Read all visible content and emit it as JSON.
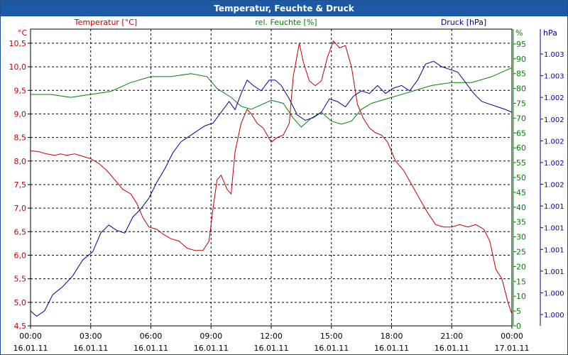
{
  "window": {
    "title": "Temperatur, Feuchte & Druck"
  },
  "colors": {
    "temperature": "#c00000",
    "humidity": "#008000",
    "pressure": "#000099",
    "grid": "#000000",
    "title_bar": "#1d5aa6"
  },
  "chart_data": {
    "type": "line",
    "title": "Temperatur, Feuchte & Druck",
    "x_hours": [
      0,
      24
    ],
    "x_ticks": [
      {
        "time": "00:00",
        "date": "16.01.11"
      },
      {
        "time": "03:00",
        "date": "16.01.11"
      },
      {
        "time": "06:00",
        "date": "16.01.11"
      },
      {
        "time": "09:00",
        "date": "16.01.11"
      },
      {
        "time": "12:00",
        "date": "16.01.11"
      },
      {
        "time": "15:00",
        "date": "16.01.11"
      },
      {
        "time": "18:00",
        "date": "16.01.11"
      },
      {
        "time": "21:00",
        "date": "16.01.11"
      },
      {
        "time": "00:00",
        "date": "17.01.11"
      }
    ],
    "axes": {
      "temperature": {
        "unit": "°C",
        "label": "Temperatur [°C]",
        "ylim": [
          4.5,
          10.8
        ],
        "ticks": [
          "4,5",
          "5,0",
          "5,5",
          "6,0",
          "6,5",
          "7,0",
          "7,5",
          "8,0",
          "8,5",
          "9,0",
          "9,5",
          "10,0",
          "10,5"
        ]
      },
      "humidity": {
        "unit": "%",
        "label": "rel. Feuchte [%]",
        "ylim": [
          0,
          100
        ],
        "ticks": [
          "0",
          "5",
          "10",
          "15",
          "20",
          "25",
          "30",
          "35",
          "40",
          "45",
          "50",
          "55",
          "60",
          "65",
          "70",
          "75",
          "80",
          "85",
          "90",
          "95"
        ]
      },
      "pressure": {
        "unit": "hPa",
        "label": "Druck [hPa]",
        "ticks": [
          "1.000",
          "1.000",
          "1.001",
          "1.001",
          "1.001",
          "1.001",
          "1.002",
          "1.002",
          "1.002",
          "1.002",
          "1.002",
          "1.003",
          "1.003"
        ]
      }
    },
    "series": [
      {
        "name": "Temperatur",
        "axis": "temperature",
        "points": [
          [
            0,
            8.22
          ],
          [
            0.4,
            8.2
          ],
          [
            0.8,
            8.15
          ],
          [
            1.2,
            8.12
          ],
          [
            1.5,
            8.15
          ],
          [
            1.8,
            8.12
          ],
          [
            2.2,
            8.15
          ],
          [
            2.6,
            8.1
          ],
          [
            3,
            8.05
          ],
          [
            3.4,
            7.95
          ],
          [
            3.8,
            7.8
          ],
          [
            4.2,
            7.6
          ],
          [
            4.6,
            7.4
          ],
          [
            5,
            7.3
          ],
          [
            5.3,
            7.1
          ],
          [
            5.6,
            6.8
          ],
          [
            5.9,
            6.6
          ],
          [
            6.3,
            6.55
          ],
          [
            6.6,
            6.45
          ],
          [
            7,
            6.35
          ],
          [
            7.4,
            6.3
          ],
          [
            7.8,
            6.15
          ],
          [
            8.2,
            6.1
          ],
          [
            8.6,
            6.1
          ],
          [
            8.9,
            6.3
          ],
          [
            9.1,
            7.0
          ],
          [
            9.3,
            7.6
          ],
          [
            9.5,
            7.7
          ],
          [
            9.8,
            7.4
          ],
          [
            10.0,
            7.3
          ],
          [
            10.2,
            8.2
          ],
          [
            10.5,
            8.8
          ],
          [
            10.8,
            9.1
          ],
          [
            11,
            9.0
          ],
          [
            11.3,
            8.8
          ],
          [
            11.6,
            8.7
          ],
          [
            12,
            8.4
          ],
          [
            12.3,
            8.5
          ],
          [
            12.6,
            8.55
          ],
          [
            12.9,
            8.8
          ],
          [
            13.1,
            9.8
          ],
          [
            13.4,
            10.5
          ],
          [
            13.6,
            10.1
          ],
          [
            13.9,
            9.7
          ],
          [
            14.2,
            9.6
          ],
          [
            14.5,
            9.7
          ],
          [
            14.8,
            10.2
          ],
          [
            15.1,
            10.55
          ],
          [
            15.4,
            10.4
          ],
          [
            15.7,
            10.45
          ],
          [
            16,
            10.0
          ],
          [
            16.3,
            9.2
          ],
          [
            16.6,
            8.9
          ],
          [
            16.9,
            8.7
          ],
          [
            17.2,
            8.6
          ],
          [
            17.5,
            8.55
          ],
          [
            17.8,
            8.4
          ],
          [
            18.2,
            8.0
          ],
          [
            18.6,
            7.8
          ],
          [
            19,
            7.5
          ],
          [
            19.4,
            7.2
          ],
          [
            19.8,
            6.9
          ],
          [
            20.2,
            6.65
          ],
          [
            20.6,
            6.6
          ],
          [
            21,
            6.6
          ],
          [
            21.4,
            6.65
          ],
          [
            21.8,
            6.6
          ],
          [
            22.2,
            6.65
          ],
          [
            22.6,
            6.55
          ],
          [
            22.9,
            6.3
          ],
          [
            23.2,
            5.7
          ],
          [
            23.5,
            5.5
          ],
          [
            23.8,
            5.0
          ],
          [
            24,
            4.75
          ]
        ]
      },
      {
        "name": "rel. Feuchte",
        "axis": "humidity",
        "points": [
          [
            0,
            78
          ],
          [
            1,
            78
          ],
          [
            2,
            77
          ],
          [
            3,
            78
          ],
          [
            4,
            79
          ],
          [
            5,
            82
          ],
          [
            6,
            84
          ],
          [
            7,
            84
          ],
          [
            8,
            85
          ],
          [
            8.8,
            84
          ],
          [
            9.3,
            80
          ],
          [
            10,
            77
          ],
          [
            10.5,
            74
          ],
          [
            11,
            73
          ],
          [
            12,
            76
          ],
          [
            12.6,
            75
          ],
          [
            13.1,
            70
          ],
          [
            13.5,
            67
          ],
          [
            14,
            70
          ],
          [
            14.5,
            72
          ],
          [
            15,
            69
          ],
          [
            15.5,
            68
          ],
          [
            16,
            69
          ],
          [
            16.5,
            73
          ],
          [
            17,
            75
          ],
          [
            18,
            77
          ],
          [
            19,
            79
          ],
          [
            20,
            81
          ],
          [
            21,
            82
          ],
          [
            22,
            82
          ],
          [
            23,
            84
          ],
          [
            24,
            87
          ]
        ]
      },
      {
        "name": "Druck",
        "axis": "pressure",
        "points": [
          [
            0,
            0.04
          ],
          [
            0.3,
            0.02
          ],
          [
            0.7,
            0.04
          ],
          [
            1.1,
            0.1
          ],
          [
            1.6,
            0.13
          ],
          [
            2.1,
            0.17
          ],
          [
            2.6,
            0.23
          ],
          [
            3.1,
            0.26
          ],
          [
            3.5,
            0.33
          ],
          [
            3.9,
            0.36
          ],
          [
            4.3,
            0.34
          ],
          [
            4.7,
            0.33
          ],
          [
            5.1,
            0.39
          ],
          [
            5.5,
            0.42
          ],
          [
            5.9,
            0.46
          ],
          [
            6.3,
            0.52
          ],
          [
            6.7,
            0.57
          ],
          [
            7.1,
            0.63
          ],
          [
            7.5,
            0.67
          ],
          [
            7.9,
            0.69
          ],
          [
            8.3,
            0.71
          ],
          [
            8.7,
            0.73
          ],
          [
            9.1,
            0.74
          ],
          [
            9.5,
            0.78
          ],
          [
            9.9,
            0.82
          ],
          [
            10.2,
            0.79
          ],
          [
            10.5,
            0.85
          ],
          [
            10.8,
            0.9
          ],
          [
            11.1,
            0.88
          ],
          [
            11.5,
            0.86
          ],
          [
            11.9,
            0.9
          ],
          [
            12.2,
            0.9
          ],
          [
            12.5,
            0.88
          ],
          [
            12.9,
            0.83
          ],
          [
            13.3,
            0.77
          ],
          [
            13.7,
            0.75
          ],
          [
            14.1,
            0.76
          ],
          [
            14.5,
            0.78
          ],
          [
            14.9,
            0.83
          ],
          [
            15.3,
            0.82
          ],
          [
            15.7,
            0.8
          ],
          [
            16.1,
            0.84
          ],
          [
            16.5,
            0.86
          ],
          [
            16.9,
            0.85
          ],
          [
            17.3,
            0.88
          ],
          [
            17.7,
            0.85
          ],
          [
            18.1,
            0.87
          ],
          [
            18.5,
            0.88
          ],
          [
            18.9,
            0.86
          ],
          [
            19.3,
            0.9
          ],
          [
            19.7,
            0.96
          ],
          [
            20.1,
            0.97
          ],
          [
            20.5,
            0.95
          ],
          [
            20.9,
            0.94
          ],
          [
            21.3,
            0.93
          ],
          [
            21.7,
            0.89
          ],
          [
            22.1,
            0.85
          ],
          [
            22.5,
            0.82
          ],
          [
            22.9,
            0.81
          ],
          [
            23.3,
            0.8
          ],
          [
            23.7,
            0.79
          ],
          [
            24,
            0.78
          ]
        ]
      }
    ]
  }
}
